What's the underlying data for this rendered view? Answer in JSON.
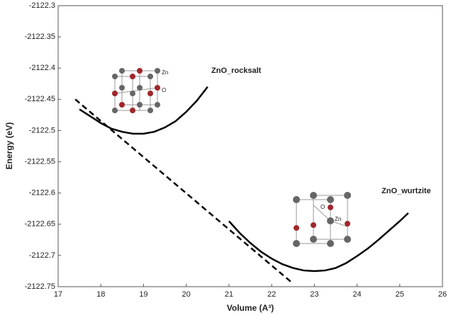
{
  "chart_data": {
    "type": "line",
    "xlabel": "Volume (A³)",
    "ylabel": "Energy (eV)",
    "xlim": [
      17,
      26
    ],
    "xticks": [
      17,
      18,
      19,
      20,
      21,
      22,
      23,
      24,
      25,
      26
    ],
    "ylim": [
      -2122.75,
      -2122.3
    ],
    "yticks": [
      -2122.3,
      -2122.35,
      -2122.4,
      -2122.45,
      -2122.5,
      -2122.55,
      -2122.6,
      -2122.65,
      -2122.7,
      -2122.75
    ],
    "series": [
      {
        "name": "ZnO_rocksalt",
        "color": "#000000",
        "x": [
          17.5,
          17.75,
          18,
          18.25,
          18.5,
          18.75,
          19,
          19.25,
          19.5,
          19.75,
          20,
          20.25,
          20.5
        ],
        "values": [
          -2122.466,
          -2122.477,
          -2122.488,
          -2122.497,
          -2122.502,
          -2122.505,
          -2122.505,
          -2122.502,
          -2122.495,
          -2122.485,
          -2122.47,
          -2122.452,
          -2122.43
        ]
      },
      {
        "name": "ZnO_wurtzite",
        "color": "#000000",
        "x": [
          21,
          21.25,
          21.5,
          21.75,
          22,
          22.25,
          22.5,
          22.75,
          23,
          23.25,
          23.5,
          23.75,
          24,
          24.25,
          24.5,
          24.75,
          25,
          25.2
        ],
        "values": [
          -2122.645,
          -2122.664,
          -2122.68,
          -2122.694,
          -2122.705,
          -2122.714,
          -2122.72,
          -2122.724,
          -2122.725,
          -2122.724,
          -2122.72,
          -2122.712,
          -2122.701,
          -2122.689,
          -2122.675,
          -2122.66,
          -2122.645,
          -2122.632
        ]
      }
    ],
    "tangent": {
      "color": "#000000",
      "x": [
        17.4,
        22.5
      ],
      "values": [
        -2122.45,
        -2122.745
      ]
    },
    "inset_labels": {
      "rocksalt": [
        "Zn",
        "O"
      ],
      "wurtzite": [
        "O",
        "Zn"
      ]
    }
  }
}
